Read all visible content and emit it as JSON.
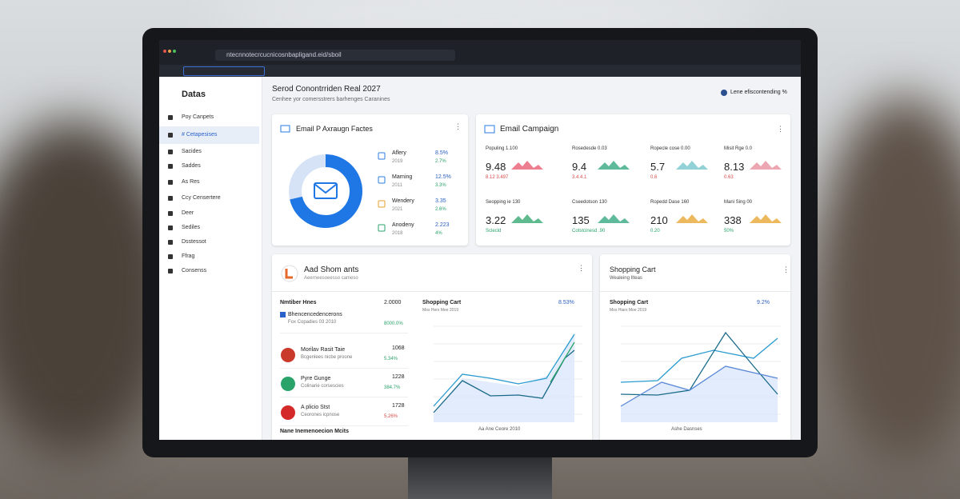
{
  "browser": {
    "url": "ntecnnotecrcucnicosnbapligand.eid/sboil"
  },
  "sidebar": {
    "title": "Datas",
    "items": [
      "Poy Canpets",
      "# Cetapesises",
      "Sacides",
      "Saddes",
      "As Res",
      "Ccy Censertere",
      "Deer",
      "Sediles",
      "Dsstessot",
      "Ffrag",
      "Consenss"
    ]
  },
  "header": {
    "title": "Serod Conontrriden Real 2027",
    "subtitle": "Cenhee yor comersstrers barhenges Caranines",
    "user": "Lene efiscontending %"
  },
  "card1": {
    "title": "Email P Axraugn Factes",
    "items": [
      {
        "label": "Aflery",
        "sub": "2019",
        "value": "8.5%",
        "change": "2.7%"
      },
      {
        "label": "Marning",
        "sub": "2011",
        "value": "12.5%",
        "change": "3.3%"
      },
      {
        "label": "Wendery",
        "sub": "2021",
        "value": "3.35",
        "change": "2.6%"
      },
      {
        "label": "Anodeny",
        "sub": "2018",
        "value": "2.223",
        "change": "4%"
      }
    ]
  },
  "card2": {
    "title": "Email Campaign",
    "metrics": [
      {
        "label": "Populing 1.100",
        "value": "9.48",
        "change": "8.12 3.497"
      },
      {
        "label": "Rosedesde 0.03",
        "value": "9.4",
        "change": "3.4.4.1"
      },
      {
        "label": "Ropecle cose 0.00",
        "value": "5.7",
        "change": "0.6"
      },
      {
        "label": "Misit Rge 0.0",
        "value": "8.13",
        "change": "0.63"
      },
      {
        "label": "Seopping ie 130",
        "value": "3.22",
        "change": "Sclecld"
      },
      {
        "label": "Cseedotson 130",
        "value": "135",
        "change": "Cotstcinesd .90"
      },
      {
        "label": "Ropedd Dase 160",
        "value": "210",
        "change": "0.20"
      },
      {
        "label": "Mani Sing 00",
        "value": "338",
        "change": "50%"
      }
    ]
  },
  "card3": {
    "title": "Aad Shom ants",
    "subtitle": "Aeerneesoeesso cameso",
    "list_title": "Nmtiber Hnes",
    "list_value": "2.0000",
    "items": [
      {
        "name": "Bhencencedencerons",
        "sub": "Fox Copadies 03 2010",
        "value": "",
        "change": "8000.0%"
      },
      {
        "name": "Morilav Rasit Taie",
        "sub": "Bcgenlees nicbe proone",
        "value": "1068",
        "change": "5.34%"
      },
      {
        "name": "Pyre Gunge",
        "sub": "Colinarie corsescies",
        "value": "1228",
        "change": "384.7%"
      },
      {
        "name": "A plicio Stst",
        "sub": "Ceorones icpnose",
        "value": "1728",
        "change": "5.26%"
      }
    ],
    "footer": "Nane Inemenoecion Mcits",
    "chart": {
      "title": "Shopping Cart",
      "subtitle": "Mos Hers Mee 2019",
      "change": "8.53%",
      "x_title": "Aa Ane Ceore 2010"
    }
  },
  "card4": {
    "title": "Shopping Cart",
    "subtitle": "Wealeing Ilteas",
    "chart": {
      "title": "Shopping Cart",
      "subtitle": "Mos Hiars Moe 2019",
      "change": "9.2%",
      "x_title": "Ashe Dasnses"
    }
  }
}
